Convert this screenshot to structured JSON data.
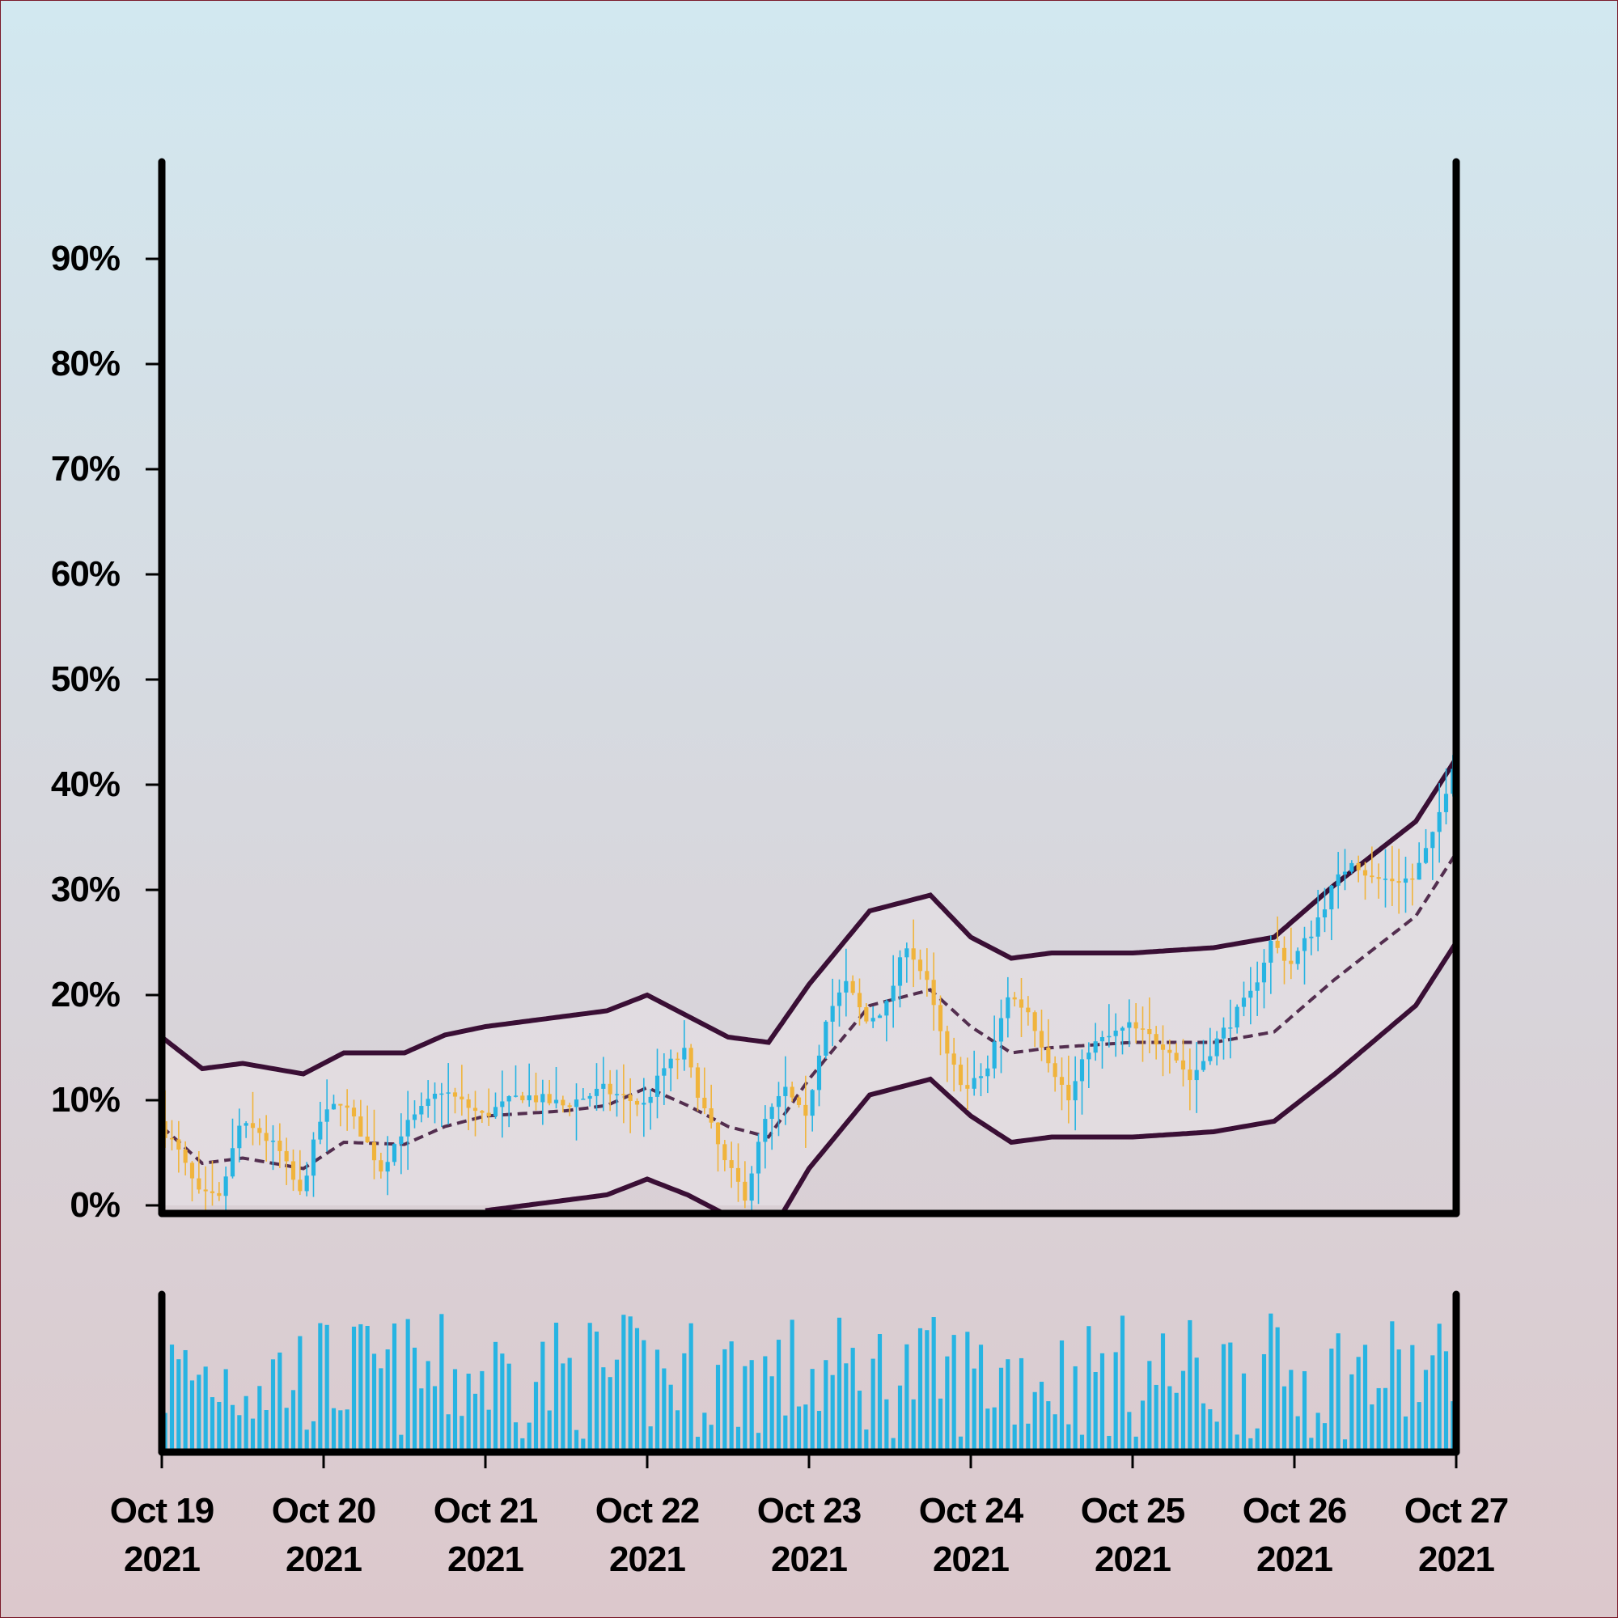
{
  "chart_data": {
    "type": "candlestick",
    "title": "",
    "xlabel": "",
    "ylabel": "",
    "ylim": [
      0,
      100
    ],
    "y_ticks": [
      {
        "value": 0,
        "label": "0%"
      },
      {
        "value": 10,
        "label": "10%"
      },
      {
        "value": 20,
        "label": "20%"
      },
      {
        "value": 30,
        "label": "30%"
      },
      {
        "value": 40,
        "label": "40%"
      },
      {
        "value": 50,
        "label": "50%"
      },
      {
        "value": 60,
        "label": "60%"
      },
      {
        "value": 70,
        "label": "70%"
      },
      {
        "value": 80,
        "label": "80%"
      },
      {
        "value": 90,
        "label": "90%"
      }
    ],
    "x_range": [
      "2021-10-19",
      "2021-10-27"
    ],
    "x_ticks": [
      {
        "date": "2021-10-19",
        "line1": "Oct 19",
        "line2": "2021"
      },
      {
        "date": "2021-10-20",
        "line1": "Oct 20",
        "line2": "2021"
      },
      {
        "date": "2021-10-21",
        "line1": "Oct 21",
        "line2": "2021"
      },
      {
        "date": "2021-10-22",
        "line1": "Oct 22",
        "line2": "2021"
      },
      {
        "date": "2021-10-23",
        "line1": "Oct 23",
        "line2": "2021"
      },
      {
        "date": "2021-10-24",
        "line1": "Oct 24",
        "line2": "2021"
      },
      {
        "date": "2021-10-25",
        "line1": "Oct 25",
        "line2": "2021"
      },
      {
        "date": "2021-10-26",
        "line1": "Oct 26",
        "line2": "2021"
      },
      {
        "date": "2021-10-27",
        "line1": "Oct 27",
        "line2": "2021"
      }
    ],
    "price_path": [
      [
        "2021-10-19 00:00",
        8.0
      ],
      [
        "2021-10-19 03:00",
        5.0
      ],
      [
        "2021-10-19 06:00",
        1.0
      ],
      [
        "2021-10-19 09:00",
        0.5
      ],
      [
        "2021-10-19 12:00",
        7.5
      ],
      [
        "2021-10-19 15:00",
        7.0
      ],
      [
        "2021-10-19 18:00",
        5.0
      ],
      [
        "2021-10-19 21:00",
        1.0
      ],
      [
        "2021-10-20 00:00",
        8.0
      ],
      [
        "2021-10-20 03:00",
        10.0
      ],
      [
        "2021-10-20 06:00",
        7.0
      ],
      [
        "2021-10-20 09:00",
        3.5
      ],
      [
        "2021-10-20 12:00",
        7.0
      ],
      [
        "2021-10-20 15:00",
        9.0
      ],
      [
        "2021-10-20 18:00",
        11.0
      ],
      [
        "2021-10-21 00:00",
        8.5
      ],
      [
        "2021-10-21 06:00",
        10.5
      ],
      [
        "2021-10-21 12:00",
        9.5
      ],
      [
        "2021-10-21 18:00",
        11.0
      ],
      [
        "2021-10-22 00:00",
        9.5
      ],
      [
        "2021-10-22 03:00",
        13.0
      ],
      [
        "2021-10-22 06:00",
        14.5
      ],
      [
        "2021-10-22 09:00",
        9.0
      ],
      [
        "2021-10-22 12:00",
        4.0
      ],
      [
        "2021-10-22 15:00",
        1.0
      ],
      [
        "2021-10-22 18:00",
        8.0
      ],
      [
        "2021-10-22 21:00",
        11.0
      ],
      [
        "2021-10-23 00:00",
        8.0
      ],
      [
        "2021-10-23 03:00",
        18.0
      ],
      [
        "2021-10-23 06:00",
        21.0
      ],
      [
        "2021-10-23 09:00",
        17.5
      ],
      [
        "2021-10-23 12:00",
        19.0
      ],
      [
        "2021-10-23 15:00",
        25.0
      ],
      [
        "2021-10-23 18:00",
        21.0
      ],
      [
        "2021-10-23 21:00",
        14.0
      ],
      [
        "2021-10-24 00:00",
        11.0
      ],
      [
        "2021-10-24 03:00",
        13.0
      ],
      [
        "2021-10-24 06:00",
        20.0
      ],
      [
        "2021-10-24 09:00",
        18.5
      ],
      [
        "2021-10-24 12:00",
        14.0
      ],
      [
        "2021-10-24 15:00",
        10.0
      ],
      [
        "2021-10-24 18:00",
        15.0
      ],
      [
        "2021-10-25 00:00",
        17.0
      ],
      [
        "2021-10-25 06:00",
        15.0
      ],
      [
        "2021-10-25 09:00",
        12.0
      ],
      [
        "2021-10-25 15:00",
        17.5
      ],
      [
        "2021-10-25 18:00",
        20.0
      ],
      [
        "2021-10-25 21:00",
        25.0
      ],
      [
        "2021-10-26 00:00",
        23.0
      ],
      [
        "2021-10-26 03:00",
        26.0
      ],
      [
        "2021-10-26 06:00",
        30.0
      ],
      [
        "2021-10-26 09:00",
        33.0
      ],
      [
        "2021-10-26 12:00",
        31.0
      ],
      [
        "2021-10-26 18:00",
        31.0
      ],
      [
        "2021-10-26 21:00",
        35.0
      ],
      [
        "2021-10-27 00:00",
        42.0
      ]
    ],
    "band_upper": [
      [
        "2021-10-19 00:00",
        16.0
      ],
      [
        "2021-10-19 06:00",
        13.0
      ],
      [
        "2021-10-19 12:00",
        13.5
      ],
      [
        "2021-10-19 21:00",
        12.5
      ],
      [
        "2021-10-20 03:00",
        14.5
      ],
      [
        "2021-10-20 12:00",
        14.5
      ],
      [
        "2021-10-20 18:00",
        16.2
      ],
      [
        "2021-10-21 00:00",
        17.0
      ],
      [
        "2021-10-21 12:00",
        18.0
      ],
      [
        "2021-10-21 18:00",
        18.5
      ],
      [
        "2021-10-22 00:00",
        20.0
      ],
      [
        "2021-10-22 06:00",
        18.0
      ],
      [
        "2021-10-22 12:00",
        16.0
      ],
      [
        "2021-10-22 18:00",
        15.5
      ],
      [
        "2021-10-23 00:00",
        21.0
      ],
      [
        "2021-10-23 09:00",
        28.0
      ],
      [
        "2021-10-23 18:00",
        29.5
      ],
      [
        "2021-10-24 00:00",
        25.5
      ],
      [
        "2021-10-24 06:00",
        23.5
      ],
      [
        "2021-10-24 12:00",
        24.0
      ],
      [
        "2021-10-25 00:00",
        24.0
      ],
      [
        "2021-10-25 12:00",
        24.5
      ],
      [
        "2021-10-25 21:00",
        25.5
      ],
      [
        "2021-10-26 06:00",
        30.5
      ],
      [
        "2021-10-26 18:00",
        36.5
      ],
      [
        "2021-10-27 00:00",
        42.5
      ]
    ],
    "band_middle": [
      [
        "2021-10-19 00:00",
        7.5
      ],
      [
        "2021-10-19 06:00",
        4.0
      ],
      [
        "2021-10-19 12:00",
        4.5
      ],
      [
        "2021-10-19 21:00",
        3.5
      ],
      [
        "2021-10-20 03:00",
        6.0
      ],
      [
        "2021-10-20 12:00",
        5.8
      ],
      [
        "2021-10-20 18:00",
        7.5
      ],
      [
        "2021-10-21 00:00",
        8.5
      ],
      [
        "2021-10-21 12:00",
        9.0
      ],
      [
        "2021-10-21 18:00",
        9.5
      ],
      [
        "2021-10-22 00:00",
        11.2
      ],
      [
        "2021-10-22 06:00",
        9.5
      ],
      [
        "2021-10-22 12:00",
        7.5
      ],
      [
        "2021-10-22 18:00",
        6.5
      ],
      [
        "2021-10-23 00:00",
        12.0
      ],
      [
        "2021-10-23 09:00",
        19.0
      ],
      [
        "2021-10-23 18:00",
        20.5
      ],
      [
        "2021-10-24 00:00",
        17.0
      ],
      [
        "2021-10-24 06:00",
        14.5
      ],
      [
        "2021-10-24 12:00",
        15.0
      ],
      [
        "2021-10-25 00:00",
        15.5
      ],
      [
        "2021-10-25 12:00",
        15.5
      ],
      [
        "2021-10-25 21:00",
        16.5
      ],
      [
        "2021-10-26 06:00",
        21.5
      ],
      [
        "2021-10-26 18:00",
        27.5
      ],
      [
        "2021-10-27 00:00",
        33.5
      ]
    ],
    "band_lower": [
      [
        "2021-10-21 00:00",
        -0.5
      ],
      [
        "2021-10-21 12:00",
        0.5
      ],
      [
        "2021-10-21 18:00",
        1.0
      ],
      [
        "2021-10-22 00:00",
        2.5
      ],
      [
        "2021-10-22 06:00",
        1.0
      ],
      [
        "2021-10-22 12:00",
        -1.0
      ],
      [
        "2021-10-22 18:00",
        -3.0
      ],
      [
        "2021-10-23 00:00",
        3.5
      ],
      [
        "2021-10-23 09:00",
        10.5
      ],
      [
        "2021-10-23 18:00",
        12.0
      ],
      [
        "2021-10-24 00:00",
        8.5
      ],
      [
        "2021-10-24 06:00",
        6.0
      ],
      [
        "2021-10-24 12:00",
        6.5
      ],
      [
        "2021-10-25 00:00",
        6.5
      ],
      [
        "2021-10-25 12:00",
        7.0
      ],
      [
        "2021-10-25 21:00",
        8.0
      ],
      [
        "2021-10-26 06:00",
        12.5
      ],
      [
        "2021-10-26 18:00",
        19.0
      ],
      [
        "2021-10-27 00:00",
        25.0
      ]
    ],
    "volume": {
      "ylim": [
        0,
        100
      ],
      "candles_per_hour": 1
    },
    "colors": {
      "up": "#27b4e2",
      "down": "#f0b43c",
      "band": "#3a0f35",
      "band_fill": "#e6e0e4",
      "background_top": "#d2e8f0",
      "background_bottom": "#dcc8cc",
      "axis": "#000000"
    }
  }
}
